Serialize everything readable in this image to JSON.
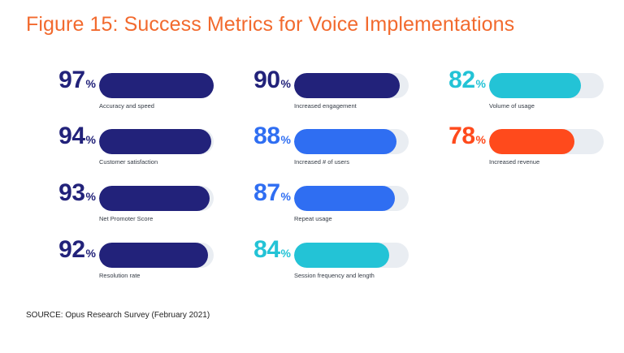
{
  "title": "Figure 15: Success Metrics for Voice Implementations",
  "source": "SOURCE: Opus Research Survey (February 2021)",
  "percent_symbol": "%",
  "colors": {
    "title": "#f26a2e",
    "navy": "#22227a",
    "blue": "#2f6ef2",
    "cyan": "#23c3d6",
    "orange": "#ff4a1c",
    "track": "#e9edf2"
  },
  "chart_data": {
    "type": "bar",
    "title": "Figure 15: Success Metrics for Voice Implementations",
    "unit": "%",
    "ylim": [
      0,
      100
    ],
    "metrics": [
      {
        "label": "Accuracy and speed",
        "value": 97,
        "display": "97",
        "color": "#22227a"
      },
      {
        "label": "Customer satisfaction",
        "value": 94,
        "display": "94",
        "color": "#22227a"
      },
      {
        "label": "Net Promoter Score",
        "value": 93,
        "display": "93",
        "color": "#22227a"
      },
      {
        "label": "Resolution rate",
        "value": 92,
        "display": "92",
        "color": "#22227a"
      },
      {
        "label": "Increased engagement",
        "value": 90,
        "display": "90",
        "color": "#22227a"
      },
      {
        "label": "Increased # of users",
        "value": 88,
        "display": "88",
        "color": "#2f6ef2"
      },
      {
        "label": "Repeat usage",
        "value": 87,
        "display": "87",
        "color": "#2f6ef2"
      },
      {
        "label": "Session frequency and length",
        "value": 84,
        "display": "84",
        "color": "#23c3d6"
      },
      {
        "label": "Volume of usage",
        "value": 82,
        "display": "82",
        "color": "#23c3d6"
      },
      {
        "label": "Increased revenue",
        "value": 78,
        "display": "78",
        "color": "#ff4a1c"
      }
    ]
  }
}
